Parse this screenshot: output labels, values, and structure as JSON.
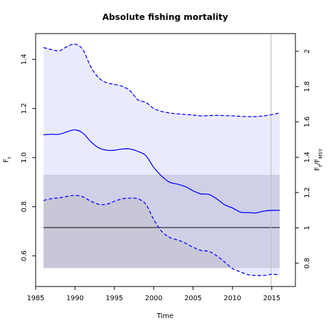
{
  "chart_data": {
    "type": "line",
    "title": "Absolute fishing mortality",
    "xlabel": "Time",
    "ylabel": "F_t",
    "ylabel_right": "F_t/F_MSY",
    "xlim": [
      1985,
      2018
    ],
    "ylim": [
      0.475,
      1.505
    ],
    "y2lim": [
      0.668,
      2.1
    ],
    "x_ticks": [
      1985,
      1990,
      1995,
      2000,
      2005,
      2010,
      2015
    ],
    "y_ticks": [
      0.6,
      0.8,
      1.0,
      1.2,
      1.4
    ],
    "y2_ticks": [
      0.8,
      1,
      1.2,
      1.4,
      1.6,
      1.8,
      2
    ],
    "x_tick_labels": [
      "1985",
      "1990",
      "1995",
      "2000",
      "2005",
      "2010",
      "2015"
    ],
    "y_tick_labels": [
      "0.6",
      "0.8",
      "1.0",
      "1.2",
      "1.4"
    ],
    "y2_tick_labels": [
      "0.8",
      "1",
      "1.2",
      "1.4",
      "1.6",
      "1.8",
      "2"
    ],
    "fmsy": {
      "value": 0.715,
      "ci_lower": 0.55,
      "ci_upper": 0.93,
      "color": "#d3d3d3",
      "band_color": "#bebedb",
      "line_color": "#000000"
    },
    "vertical_line_x": 2014.9,
    "colors": {
      "estimate": "#0000ff",
      "ci_fill": "#e6e6ff",
      "ci_edge": "#9999cc",
      "vline": "#bbbbbb"
    },
    "series": [
      {
        "name": "estimate",
        "x": [
          1986,
          1987,
          1988,
          1989,
          1990,
          1991,
          1992,
          1993,
          1994,
          1995,
          1996,
          1997,
          1998,
          1999,
          2000,
          2001,
          2002,
          2003,
          2004,
          2005,
          2006,
          2007,
          2008,
          2009,
          2010,
          2011,
          2012,
          2013,
          2014,
          2015,
          2016
        ],
        "values": [
          1.093,
          1.095,
          1.095,
          1.105,
          1.113,
          1.1,
          1.065,
          1.04,
          1.03,
          1.03,
          1.035,
          1.035,
          1.025,
          1.008,
          0.96,
          0.925,
          0.9,
          0.892,
          0.882,
          0.865,
          0.852,
          0.85,
          0.832,
          0.808,
          0.795,
          0.778,
          0.776,
          0.775,
          0.782,
          0.785,
          0.785
        ]
      },
      {
        "name": "ci_upper",
        "x": [
          1986,
          1987,
          1988,
          1989,
          1990,
          1991,
          1992,
          1993,
          1994,
          1995,
          1996,
          1997,
          1998,
          1999,
          2000,
          2001,
          2002,
          2003,
          2004,
          2005,
          2006,
          2007,
          2008,
          2009,
          2010,
          2011,
          2012,
          2013,
          2014,
          2015,
          2016
        ],
        "values": [
          1.448,
          1.44,
          1.435,
          1.452,
          1.462,
          1.44,
          1.37,
          1.325,
          1.305,
          1.298,
          1.29,
          1.272,
          1.235,
          1.225,
          1.2,
          1.188,
          1.182,
          1.178,
          1.176,
          1.173,
          1.17,
          1.171,
          1.172,
          1.171,
          1.17,
          1.168,
          1.167,
          1.167,
          1.17,
          1.175,
          1.182
        ]
      },
      {
        "name": "ci_lower",
        "x": [
          1986,
          1987,
          1988,
          1989,
          1990,
          1991,
          1992,
          1993,
          1994,
          1995,
          1996,
          1997,
          1998,
          1999,
          2000,
          2001,
          2002,
          2003,
          2004,
          2005,
          2006,
          2007,
          2008,
          2009,
          2010,
          2011,
          2012,
          2013,
          2014,
          2015,
          2016
        ],
        "values": [
          0.825,
          0.833,
          0.836,
          0.842,
          0.846,
          0.84,
          0.823,
          0.81,
          0.81,
          0.822,
          0.832,
          0.835,
          0.832,
          0.81,
          0.748,
          0.7,
          0.675,
          0.665,
          0.652,
          0.635,
          0.622,
          0.618,
          0.6,
          0.575,
          0.548,
          0.535,
          0.523,
          0.52,
          0.52,
          0.525,
          0.522
        ]
      }
    ]
  }
}
